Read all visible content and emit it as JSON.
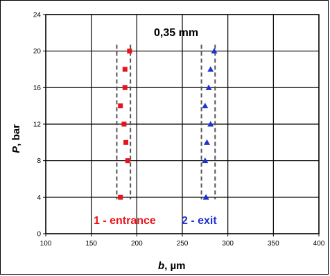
{
  "chart_data": {
    "type": "scatter",
    "title": "",
    "xlabel": {
      "symbol": "b",
      "unit": ", µm"
    },
    "ylabel": {
      "symbol": "P",
      "unit": ", bar"
    },
    "xlim": [
      100,
      400
    ],
    "ylim": [
      0,
      24
    ],
    "xticks": [
      100,
      150,
      200,
      250,
      300,
      350,
      400
    ],
    "yticks": [
      0,
      4,
      8,
      12,
      16,
      20,
      24
    ],
    "grid": true,
    "series": [
      {
        "name": "1 - entrance",
        "color": "#e8141c",
        "marker": "square",
        "points": [
          {
            "x": 182,
            "y": 4
          },
          {
            "x": 190,
            "y": 8
          },
          {
            "x": 188,
            "y": 10
          },
          {
            "x": 186,
            "y": 12
          },
          {
            "x": 182,
            "y": 14
          },
          {
            "x": 187,
            "y": 16
          },
          {
            "x": 187,
            "y": 18
          },
          {
            "x": 192,
            "y": 20
          }
        ]
      },
      {
        "name": "2 - exit",
        "color": "#1e32d2",
        "marker": "triangle",
        "points": [
          {
            "x": 276,
            "y": 4
          },
          {
            "x": 275,
            "y": 8
          },
          {
            "x": 277,
            "y": 10
          },
          {
            "x": 281,
            "y": 12
          },
          {
            "x": 275,
            "y": 14
          },
          {
            "x": 279,
            "y": 16
          },
          {
            "x": 281,
            "y": 18
          },
          {
            "x": 285,
            "y": 20
          }
        ]
      }
    ],
    "reference_lines": {
      "x_values": [
        178,
        193,
        271,
        286
      ],
      "y_range": [
        4,
        20.7
      ],
      "style": "dashed",
      "color": "#555555"
    },
    "annotations": {
      "spacing_label": "0,35 mm",
      "entrance_label": "1 - entrance",
      "exit_label": "2 - exit"
    }
  }
}
